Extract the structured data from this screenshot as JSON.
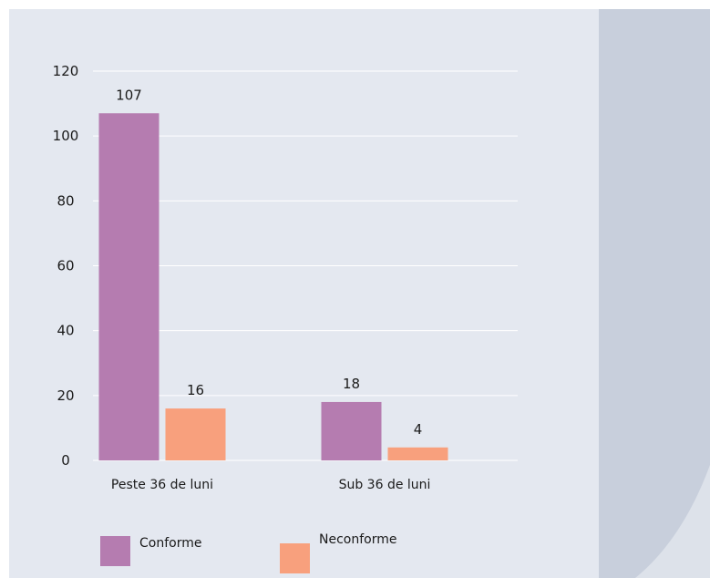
{
  "chart_data": {
    "type": "bar",
    "categories": [
      "Peste 36 de luni",
      "Sub 36 de luni"
    ],
    "series": [
      {
        "name": "Conforme",
        "values": [
          107,
          18
        ],
        "color": "#b57cb0"
      },
      {
        "name": "Neconforme",
        "values": [
          16,
          4
        ],
        "color": "#f8a07d"
      }
    ],
    "ylim": [
      0,
      120
    ],
    "yticks": [
      "0",
      "20",
      "40",
      "60",
      "80",
      "100",
      "120"
    ],
    "grid": true,
    "legend_position": "bottom-left"
  },
  "colors": {
    "background": "#e4e8f0",
    "side_panel": "#c8cfdc",
    "gridline": "#ffffff",
    "text": "#1a1a1a"
  }
}
